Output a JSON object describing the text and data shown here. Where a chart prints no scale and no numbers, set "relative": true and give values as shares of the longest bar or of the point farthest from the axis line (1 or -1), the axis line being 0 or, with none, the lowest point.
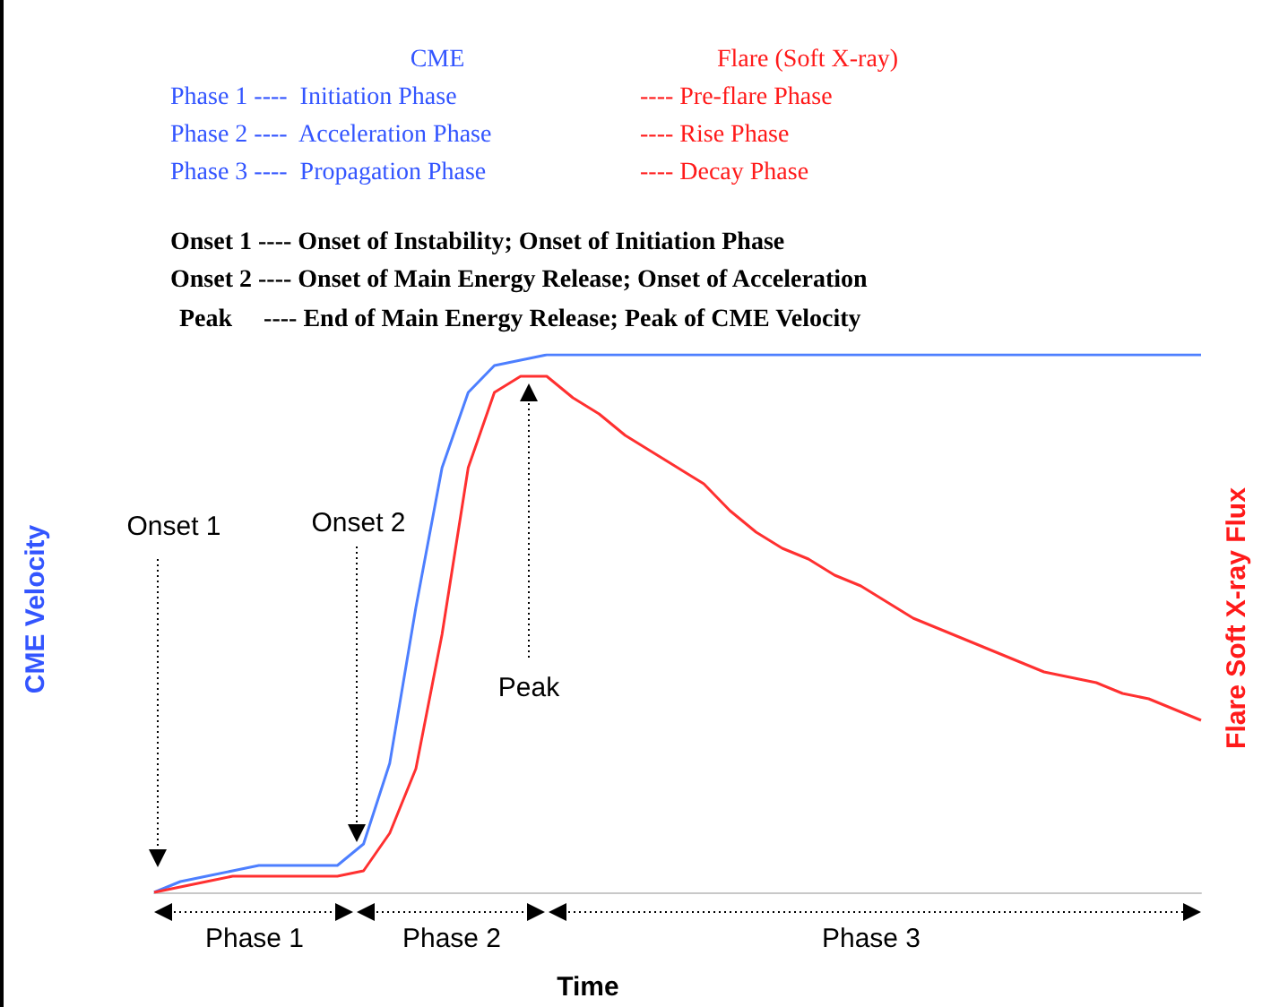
{
  "chart_data": {
    "type": "line",
    "relative": true,
    "xlabel": "Time",
    "ylabel": "CME Velocity",
    "y2label": "Flare Soft X-ray Flux",
    "categories": [
      null,
      null,
      null,
      null,
      null,
      null,
      null,
      null,
      null,
      null,
      null,
      null,
      null,
      null,
      null,
      null,
      null,
      null,
      null,
      null,
      null,
      null,
      null,
      null,
      null,
      null,
      null,
      null,
      null,
      null,
      null,
      null,
      null,
      null,
      null,
      null,
      null,
      null,
      null,
      null,
      null
    ],
    "series": [
      {
        "color": "#4d7fff",
        "values": [
          0,
          0.02,
          0.03,
          0.04,
          0.05,
          0.05,
          0.05,
          0.05,
          0.09,
          0.24,
          0.53,
          0.79,
          0.93,
          0.98,
          0.99,
          1,
          1,
          1,
          1,
          1,
          1,
          1,
          1,
          1,
          1,
          1,
          1,
          1,
          1,
          1,
          1,
          1,
          1,
          1,
          1,
          1,
          1,
          1,
          1,
          1,
          1
        ]
      },
      {
        "color": "#ff3030",
        "values": [
          0,
          0.01,
          0.02,
          0.03,
          0.03,
          0.03,
          0.03,
          0.03,
          0.04,
          0.11,
          0.23,
          0.48,
          0.79,
          0.93,
          0.96,
          0.96,
          0.92,
          0.89,
          0.85,
          0.82,
          0.79,
          0.76,
          0.71,
          0.67,
          0.64,
          0.62,
          0.59,
          0.57,
          0.54,
          0.51,
          0.49,
          0.47,
          0.45,
          0.43,
          0.41,
          0.4,
          0.39,
          0.37,
          0.36,
          0.34,
          0.32
        ]
      }
    ],
    "annotations": [
      "CME",
      "Flare (Soft X-ray)",
      "Phase 1 ----  Initiation Phase",
      "---- Pre-flare Phase",
      "Phase 2 ----  Acceleration Phase",
      "---- Rise Phase",
      "Phase 3 ----  Propagation Phase",
      "---- Decay Phase",
      "Onset 1 ---- Onset of Instability; Onset of Initiation Phase",
      "Onset 2 ---- Onset of Main Energy Release; Onset of Acceleration",
      "Peak     ---- End of Main Energy Release; Peak of CME Velocity",
      "Onset 1",
      "Onset 2",
      "Peak",
      "Phase 1",
      "Phase 2",
      "Phase 3"
    ]
  }
}
